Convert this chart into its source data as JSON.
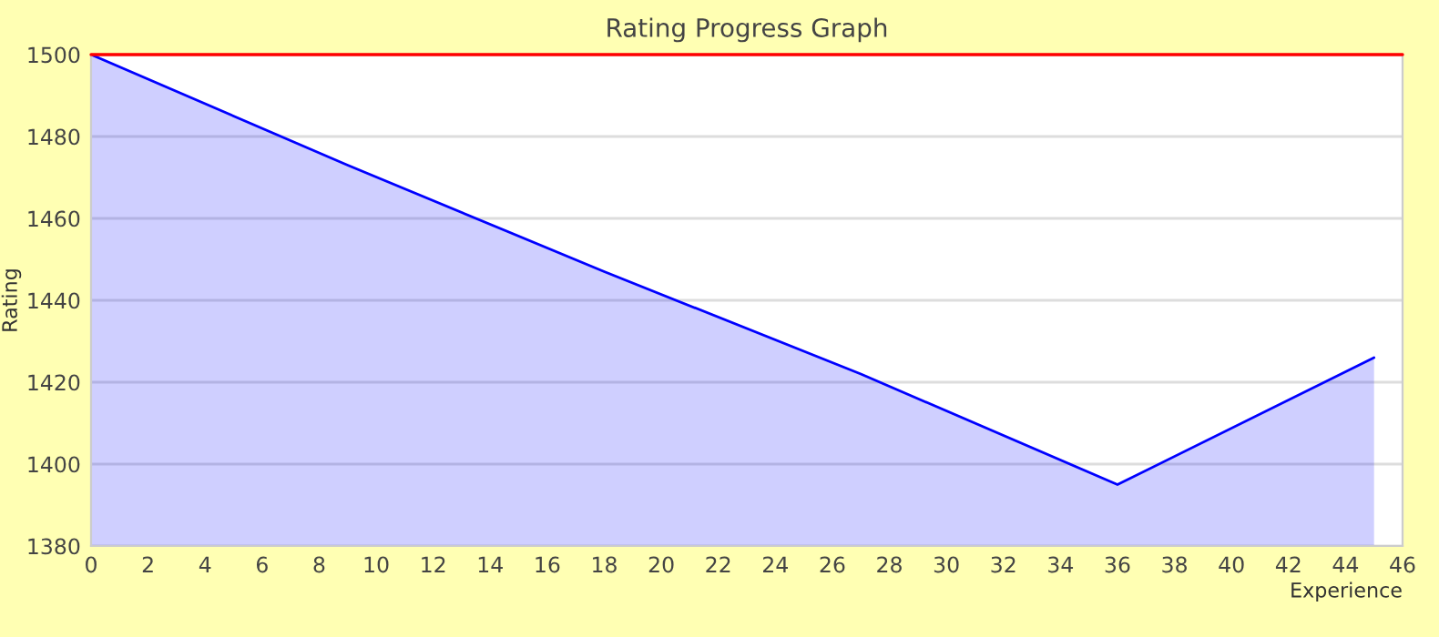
{
  "chart_data": {
    "type": "area",
    "title": "Rating Progress Graph",
    "xlabel": "Experience",
    "ylabel": "Rating",
    "x": [
      0,
      9,
      18,
      27,
      36,
      45
    ],
    "series": [
      {
        "color": "#0000ff",
        "values": [
          1500,
          1473,
          1447,
          1422,
          1395,
          1426
        ]
      }
    ],
    "xlim": [
      0,
      46
    ],
    "xticks": [
      0,
      2,
      4,
      6,
      8,
      10,
      12,
      14,
      16,
      18,
      20,
      22,
      24,
      26,
      28,
      30,
      32,
      34,
      36,
      38,
      40,
      42,
      44,
      46
    ],
    "ylim": [
      1380,
      1500
    ],
    "yticks": [
      1380,
      1400,
      1420,
      1440,
      1460,
      1480,
      1500
    ],
    "grid": "y",
    "legend": false,
    "marker": "none",
    "line_style": "solid",
    "ref_lines": [
      {
        "axis": "y",
        "value": 1500,
        "label": null,
        "color": "#ff0000"
      }
    ]
  }
}
